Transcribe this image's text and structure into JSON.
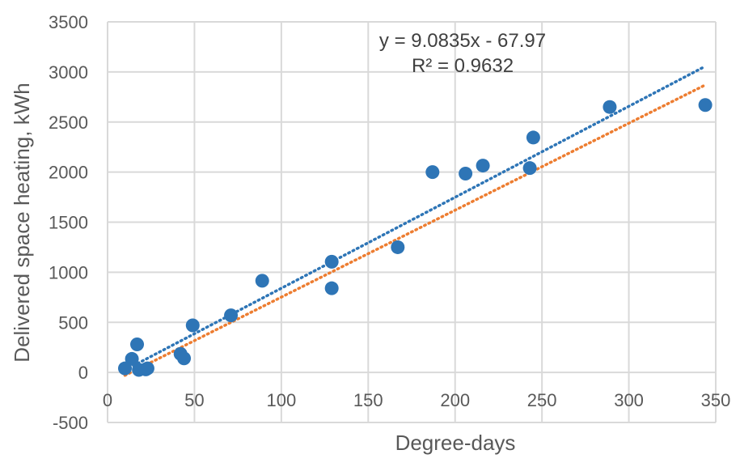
{
  "chart_data": {
    "type": "scatter",
    "title": "",
    "xlabel": "Degree-days",
    "ylabel": "Delivered space heating, kWh",
    "xlim": [
      0,
      350
    ],
    "ylim": [
      -500,
      3500
    ],
    "x_ticks": [
      "0",
      "50",
      "100",
      "150",
      "200",
      "250",
      "300",
      "350"
    ],
    "y_ticks": [
      "-500",
      "0",
      "500",
      "1000",
      "1500",
      "2000",
      "2500",
      "3000",
      "3500"
    ],
    "grid": true,
    "legend": "none",
    "series": [
      {
        "color": "#2E75B6",
        "points": [
          {
            "x": 10,
            "y": 40
          },
          {
            "x": 14,
            "y": 135
          },
          {
            "x": 17,
            "y": 280
          },
          {
            "x": 18,
            "y": 25
          },
          {
            "x": 22,
            "y": 30
          },
          {
            "x": 23,
            "y": 40
          },
          {
            "x": 42,
            "y": 185
          },
          {
            "x": 44,
            "y": 140
          },
          {
            "x": 49,
            "y": 470
          },
          {
            "x": 71,
            "y": 570
          },
          {
            "x": 89,
            "y": 915
          },
          {
            "x": 129,
            "y": 1105
          },
          {
            "x": 129,
            "y": 840
          },
          {
            "x": 167,
            "y": 1250
          },
          {
            "x": 187,
            "y": 2000
          },
          {
            "x": 206,
            "y": 1985
          },
          {
            "x": 216,
            "y": 2065
          },
          {
            "x": 243,
            "y": 2040
          },
          {
            "x": 245,
            "y": 2345
          },
          {
            "x": 289,
            "y": 2650
          },
          {
            "x": 344,
            "y": 2670
          }
        ]
      }
    ],
    "trendlines": [
      {
        "kind": "linear",
        "color": "#2E75B6",
        "slope": 9.0835,
        "intercept": -67.97,
        "x_range": [
          10,
          344
        ]
      },
      {
        "kind": "fit",
        "color": "#ED7D31",
        "x": [
          10,
          344
        ],
        "y": [
          -30,
          2870
        ]
      }
    ],
    "annotations": {
      "equation": "y = 9.0835x - 67.97",
      "r_squared": "R² = 0.9632"
    },
    "colors": {
      "points": "#2E75B6",
      "linear_trend": "#2E75B6",
      "second_trend": "#ED7D31",
      "grid": "#D9D9D9",
      "text": "#595959"
    }
  }
}
